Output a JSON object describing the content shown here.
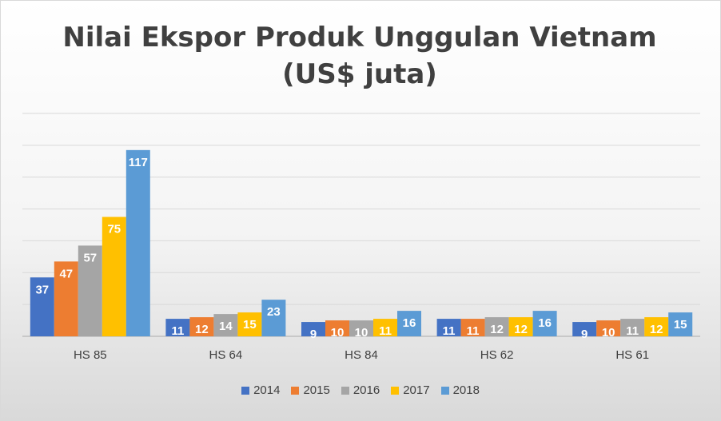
{
  "chart_data": {
    "type": "bar",
    "title": "Nilai Ekspor Produk Unggulan Vietnam (US$ juta)",
    "categories": [
      "HS 85",
      "HS 64",
      "HS 84",
      "HS 62",
      "HS 61"
    ],
    "series": [
      {
        "name": "2014",
        "color": "#4472c4",
        "values": [
          37,
          11,
          9,
          11,
          9
        ]
      },
      {
        "name": "2015",
        "color": "#ed7d31",
        "values": [
          47,
          12,
          10,
          11,
          10
        ]
      },
      {
        "name": "2016",
        "color": "#a5a5a5",
        "values": [
          57,
          14,
          10,
          12,
          11
        ]
      },
      {
        "name": "2017",
        "color": "#ffc000",
        "values": [
          75,
          15,
          11,
          12,
          12
        ]
      },
      {
        "name": "2018",
        "color": "#5b9bd5",
        "values": [
          117,
          23,
          16,
          16,
          15
        ]
      }
    ],
    "ylim": [
      0,
      140
    ],
    "grid": true,
    "legend_position": "bottom"
  }
}
